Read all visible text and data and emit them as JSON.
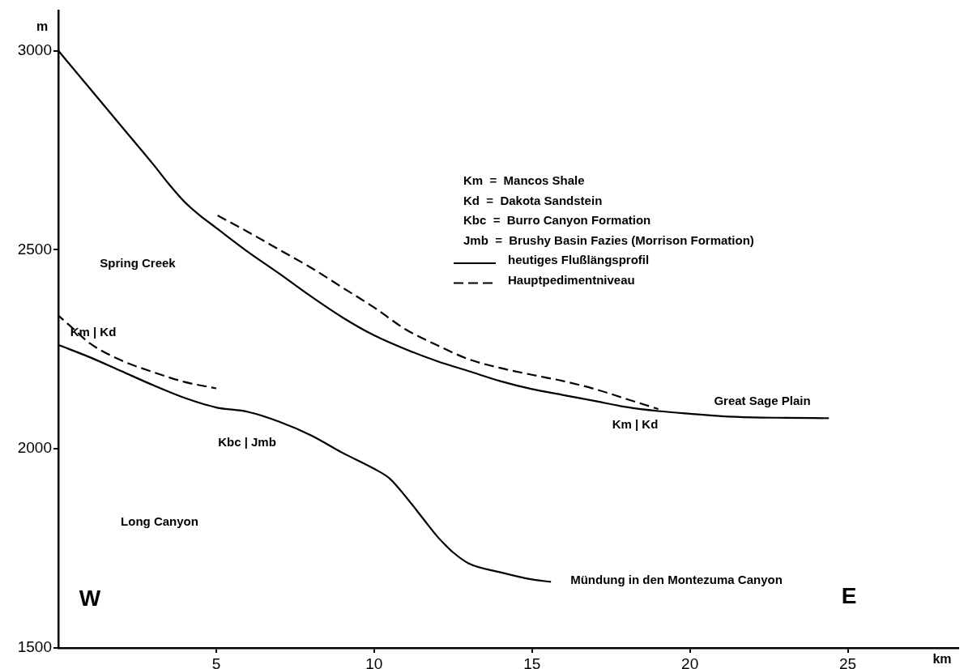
{
  "chart_data": {
    "type": "line",
    "xlabel": "km",
    "ylabel": "m",
    "xlim": [
      0,
      28.5
    ],
    "ylim": [
      1500,
      3100
    ],
    "xticks": [
      5,
      10,
      15,
      20,
      25
    ],
    "yticks": [
      1500,
      2000,
      2500,
      3000
    ],
    "grid": false,
    "legend": "top",
    "marker": "none",
    "series": [
      {
        "name": "heutiges Flußlängsprofil",
        "color": "#000000",
        "line_style": "solid",
        "x": [
          0,
          1,
          2,
          3,
          3.5,
          4,
          4.5,
          5,
          6,
          7,
          8,
          9,
          10,
          11,
          12,
          13,
          14,
          15,
          16,
          17,
          18,
          19,
          20,
          21,
          22,
          23,
          24.4
        ],
        "values": [
          3000,
          2905,
          2810,
          2715,
          2665,
          2620,
          2585,
          2555,
          2495,
          2440,
          2383,
          2330,
          2285,
          2250,
          2220,
          2195,
          2170,
          2150,
          2135,
          2120,
          2105,
          2095,
          2088,
          2082,
          2079,
          2078,
          2077
        ]
      },
      {
        "name": "Hauptpedimentniveau",
        "color": "#000000",
        "line_style": "dashed",
        "x": [
          5,
          6,
          7,
          8,
          9,
          10,
          11,
          12,
          13,
          14,
          15,
          16,
          17,
          18,
          19
        ],
        "values": [
          2588,
          2545,
          2500,
          2455,
          2405,
          2355,
          2300,
          2260,
          2225,
          2203,
          2186,
          2170,
          2150,
          2125,
          2100
        ]
      },
      {
        "color": "#000000",
        "line_style": "solid",
        "x": [
          0,
          1,
          2,
          3,
          4,
          5,
          6,
          7,
          8,
          9,
          10,
          10.5,
          11,
          11.5,
          12,
          12.3,
          12.5,
          13,
          14,
          15,
          15.6
        ],
        "values": [
          2261,
          2230,
          2195,
          2160,
          2128,
          2104,
          2093,
          2068,
          2034,
          1990,
          1950,
          1925,
          1880,
          1830,
          1780,
          1755,
          1740,
          1712,
          1690,
          1672,
          1666
        ]
      },
      {
        "color": "#000000",
        "line_style": "dashed",
        "x": [
          0,
          0.5,
          1,
          2,
          3,
          4,
          5
        ],
        "values": [
          2335,
          2300,
          2265,
          2222,
          2193,
          2168,
          2152
        ]
      }
    ],
    "annotations": [
      "Km  =  Mancos Shale",
      "Kd  =  Dakota Sandstein",
      "Kbc  =  Burro Canyon Formation",
      "Jmb  =  Brushy Basin Fazies (Morrison Formation)",
      "Spring Creek",
      "Km | Kd",
      "Kbc | Jmb",
      "Long Canyon",
      "W",
      "Km | Kd",
      "Great Sage Plain",
      "Mündung in den Montezuma Canyon",
      "E"
    ]
  }
}
